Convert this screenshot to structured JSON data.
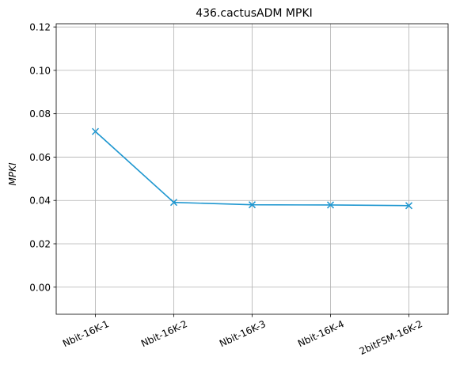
{
  "chart_data": {
    "type": "line",
    "title": "436.cactusADM MPKI",
    "xlabel": "",
    "ylabel": "MPKI",
    "categories": [
      "Nbit-16K-1",
      "Nbit-16K-2",
      "Nbit-16K-3",
      "Nbit-16K-4",
      "2bitFSM-16K-2"
    ],
    "series": [
      {
        "values": [
          0.0718,
          0.0391,
          0.038,
          0.0379,
          0.0376
        ]
      }
    ],
    "ylim": [
      -0.0125,
      0.1215
    ],
    "yticks": [
      "0.00",
      "0.02",
      "0.04",
      "0.06",
      "0.08",
      "0.10",
      "0.12"
    ],
    "grid": true,
    "marker": "x",
    "color": "#1f97d0"
  }
}
